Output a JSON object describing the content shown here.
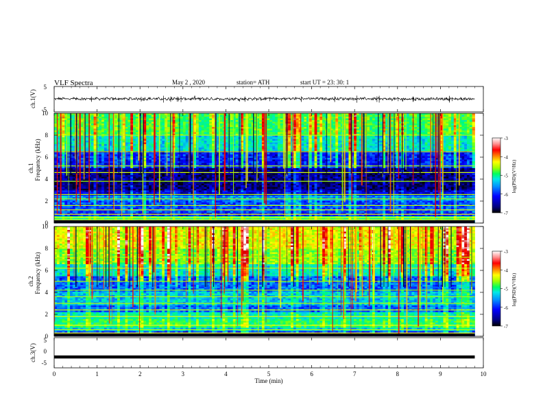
{
  "header": {
    "title": "VLF  Spectra",
    "date": "May 2  , 2020",
    "station": "station= ATH",
    "start": "start  UT  =    23: 30: 1"
  },
  "chart_data": [
    {
      "id": "ch1-waveform",
      "type": "line",
      "ylabel": "ch.1(V)",
      "ylim": [
        -5,
        5
      ],
      "y_ticks": [
        "5",
        "-5"
      ],
      "xlim": [
        0,
        10
      ],
      "series": [
        {
          "values": [
            0.15,
            0.12,
            0.18,
            0.1
          ]
        }
      ]
    },
    {
      "id": "ch1-spectrogram",
      "type": "heatmap",
      "ylabel": "ch.1\nFrequency  (kHz)",
      "ylim": [
        0,
        10
      ],
      "y_ticks": [
        "0",
        "2",
        "4",
        "6",
        "8",
        "10"
      ],
      "xlim": [
        0,
        10
      ],
      "colorbar": {
        "label": "log(PSD)(V²/Hz)",
        "ticks": [
          "-3",
          "-4",
          "-5",
          "-6",
          "-7"
        ],
        "range": [
          -7,
          -3
        ]
      }
    },
    {
      "id": "ch2-spectrogram",
      "type": "heatmap",
      "ylabel": "ch.2\nFrequency  (kHz)",
      "ylim": [
        0,
        10
      ],
      "y_ticks": [
        "0",
        "2",
        "4",
        "6",
        "8",
        "10"
      ],
      "xlim": [
        0,
        10
      ],
      "colorbar": {
        "label": "log(PSD)(V²/Hz)",
        "ticks": [
          "-3",
          "-4",
          "-5",
          "-6",
          "-7"
        ],
        "range": [
          -7,
          -3
        ]
      }
    },
    {
      "id": "ch3-waveform",
      "type": "line",
      "ylabel": "ch.3(V)",
      "ylim": [
        -5,
        5
      ],
      "y_ticks": [
        "5",
        "0",
        "-5"
      ],
      "xlim": [
        0,
        10
      ],
      "series": [
        {
          "values": [
            -1.4,
            -1.4,
            -1.4
          ]
        }
      ]
    }
  ],
  "x_axis": {
    "label": "Time  (min)",
    "ticks": [
      "0",
      "1",
      "2",
      "3",
      "4",
      "5",
      "6",
      "7",
      "8",
      "9",
      "10"
    ],
    "data_end": 9.8
  },
  "colors": {
    "colormap": [
      "#000000",
      "#00007a",
      "#0000ff",
      "#0078ff",
      "#00e0e0",
      "#00ff70",
      "#90ff00",
      "#ffff00",
      "#ff8000",
      "#ff0000",
      "#d00000",
      "#ffffff"
    ]
  }
}
